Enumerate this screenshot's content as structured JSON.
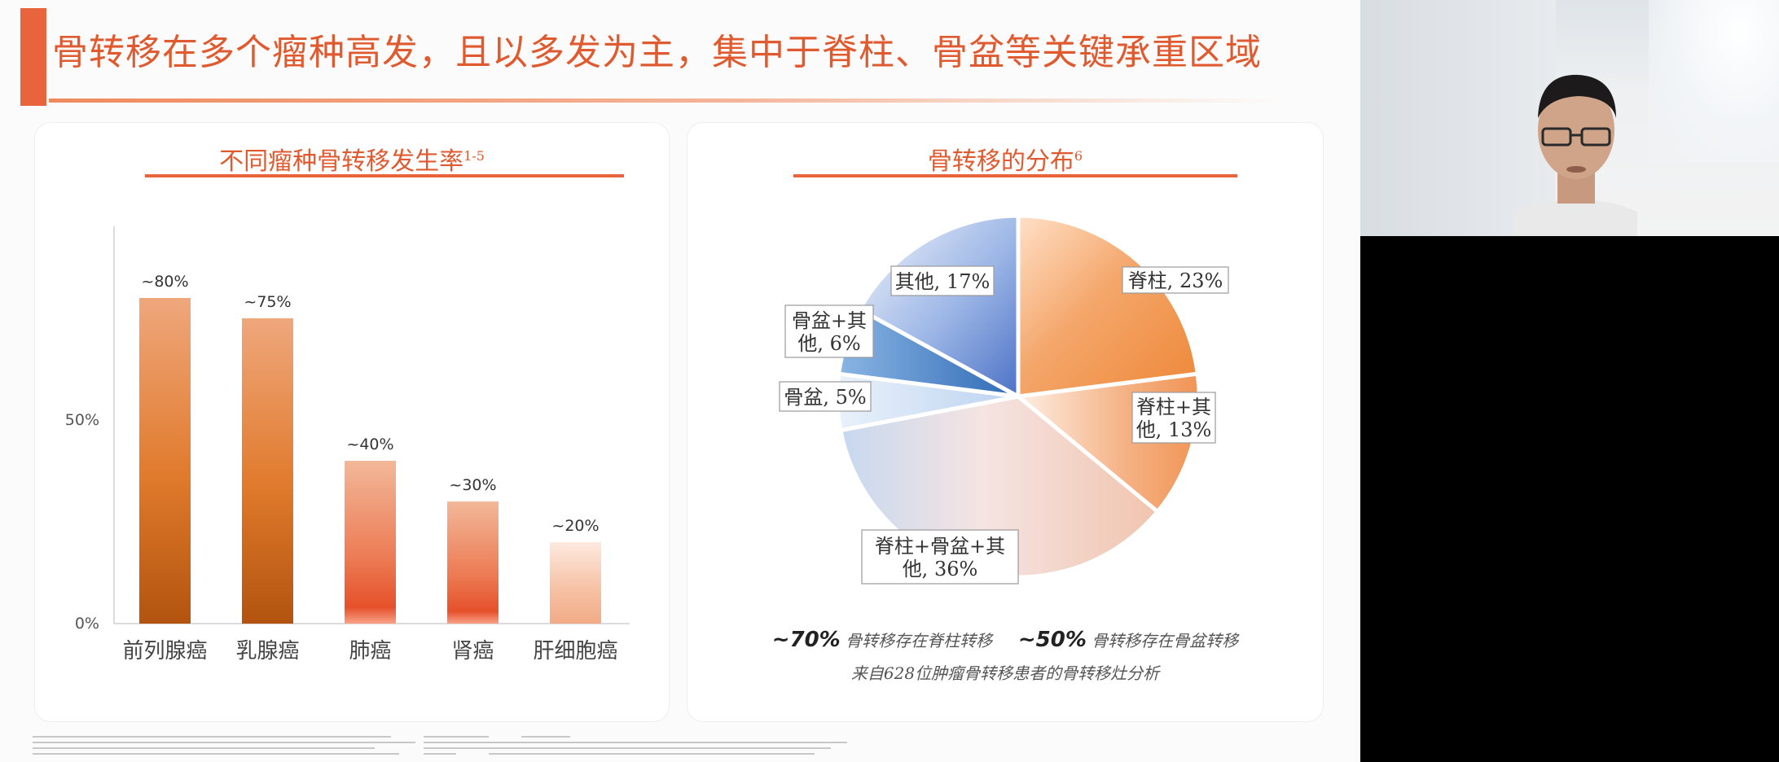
{
  "slide": {
    "title": "骨转移在多个瘤种高发，且以多发为主，集中于脊柱、骨盆等关键承重区域"
  },
  "left_panel": {
    "title": "不同瘤种骨转移发生率",
    "title_sup": "1-5"
  },
  "right_panel": {
    "title": "骨转移的分布",
    "title_sup": "6",
    "summary": {
      "stat1_value": "~70%",
      "stat1_text": "骨转移存在脊柱转移",
      "stat2_value": "~50%",
      "stat2_text": "骨转移存在骨盆转移",
      "source": "来自628位肿瘤骨转移患者的骨转移灶分析"
    }
  },
  "chart_data": [
    {
      "type": "bar",
      "categories": [
        "前列腺癌",
        "乳腺癌",
        "肺癌",
        "肾癌",
        "肝细胞癌"
      ],
      "values": [
        80,
        75,
        40,
        30,
        20
      ],
      "data_labels": [
        "~80%",
        "~75%",
        "~40%",
        "~30%",
        "~20%"
      ],
      "yticks": [
        "0%",
        "50%"
      ],
      "ylim": [
        0,
        100
      ],
      "colors": [
        "#c4621a",
        "#c4621a",
        "#ea6a44",
        "#ea6a44",
        "#f2a679"
      ]
    },
    {
      "type": "pie",
      "slices": [
        {
          "label": "脊柱, 23%",
          "value": 23,
          "color": "#f0873e"
        },
        {
          "label": "脊柱+其他, 13%",
          "value": 13,
          "color": "#f3a06a"
        },
        {
          "label": "脊柱+骨盆+其他, 36%",
          "value": 36,
          "color": "#f1c8bd"
        },
        {
          "label": "骨盆, 5%",
          "value": 5,
          "color": "#b9d1ee"
        },
        {
          "label": "骨盆+其他, 6%",
          "value": 6,
          "color": "#3a76bf"
        },
        {
          "label": "其他, 17%",
          "value": 17,
          "color": "#6f93d6"
        }
      ]
    }
  ]
}
